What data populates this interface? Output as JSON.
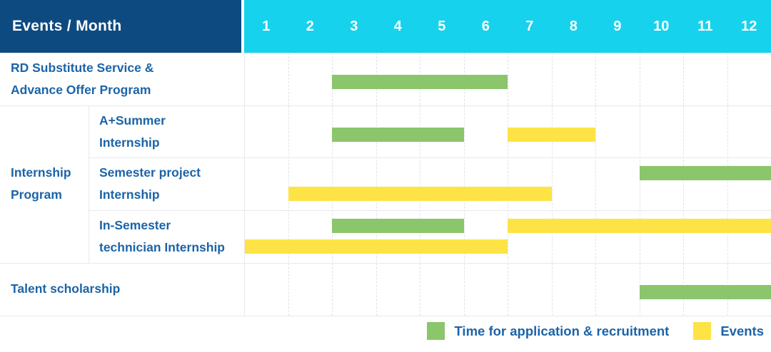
{
  "header": {
    "row_label": "Events / Month",
    "months": [
      "1",
      "2",
      "3",
      "4",
      "5",
      "6",
      "7",
      "8",
      "9",
      "10",
      "11",
      "12"
    ]
  },
  "colors": {
    "header_bg": "#0d4a80",
    "months_bg": "#17d2ec",
    "label_blue": "#1c64a8",
    "green": "#8bc56c",
    "yellow": "#fde345",
    "grid": "#e7e9ec"
  },
  "rows": [
    {
      "label_lines": [
        "RD Substitute Service &",
        "Advance Offer Program"
      ]
    },
    {
      "label_lines": [
        "A+Summer",
        "Internship"
      ]
    },
    {
      "label_lines": [
        "Semester project",
        "Internship"
      ]
    },
    {
      "label_lines": [
        "In-Semester",
        "technician Internship"
      ]
    },
    {
      "label_lines": [
        "Talent scholarship"
      ]
    }
  ],
  "group_cell": {
    "label_lines": [
      "Internship",
      "Program"
    ]
  },
  "legend": {
    "items": [
      {
        "key": "application",
        "label": "Time for application & recruitment"
      },
      {
        "key": "event",
        "label": "Events"
      }
    ]
  },
  "chart_data": {
    "type": "gantt",
    "title": "Events / Month",
    "x_axis": {
      "label": "Month",
      "ticks": [
        1,
        2,
        3,
        4,
        5,
        6,
        7,
        8,
        9,
        10,
        11,
        12
      ],
      "range": [
        1,
        12
      ]
    },
    "row_labels": [
      "RD Substitute Service & Advance Offer Program",
      "Internship Program — A+Summer Internship",
      "Internship Program — Semester project Internship",
      "Internship Program — In-Semester technician Internship",
      "Talent scholarship"
    ],
    "series": {
      "application": {
        "label": "Time for application & recruitment",
        "color": "#8bc56c"
      },
      "event": {
        "label": "Events",
        "color": "#fde345"
      }
    },
    "bars": [
      {
        "row": 0,
        "series": "application",
        "start_month": 3,
        "end_month": 6,
        "lane": "single"
      },
      {
        "row": 1,
        "series": "application",
        "start_month": 3,
        "end_month": 5,
        "lane": "single"
      },
      {
        "row": 1,
        "series": "event",
        "start_month": 7,
        "end_month": 8,
        "lane": "single"
      },
      {
        "row": 2,
        "series": "application",
        "start_month": 10,
        "end_month": 12,
        "lane": "top"
      },
      {
        "row": 2,
        "series": "event",
        "start_month": 2,
        "end_month": 7,
        "lane": "bottom"
      },
      {
        "row": 3,
        "series": "application",
        "start_month": 3,
        "end_month": 5,
        "lane": "top"
      },
      {
        "row": 3,
        "series": "event",
        "start_month": 7,
        "end_month": 12,
        "lane": "top"
      },
      {
        "row": 3,
        "series": "event",
        "start_month": 1,
        "end_month": 6,
        "lane": "bottom"
      },
      {
        "row": 4,
        "series": "application",
        "start_month": 10,
        "end_month": 12,
        "lane": "single"
      }
    ],
    "legend_position": "bottom-right",
    "grid": "dashed-monthly"
  }
}
